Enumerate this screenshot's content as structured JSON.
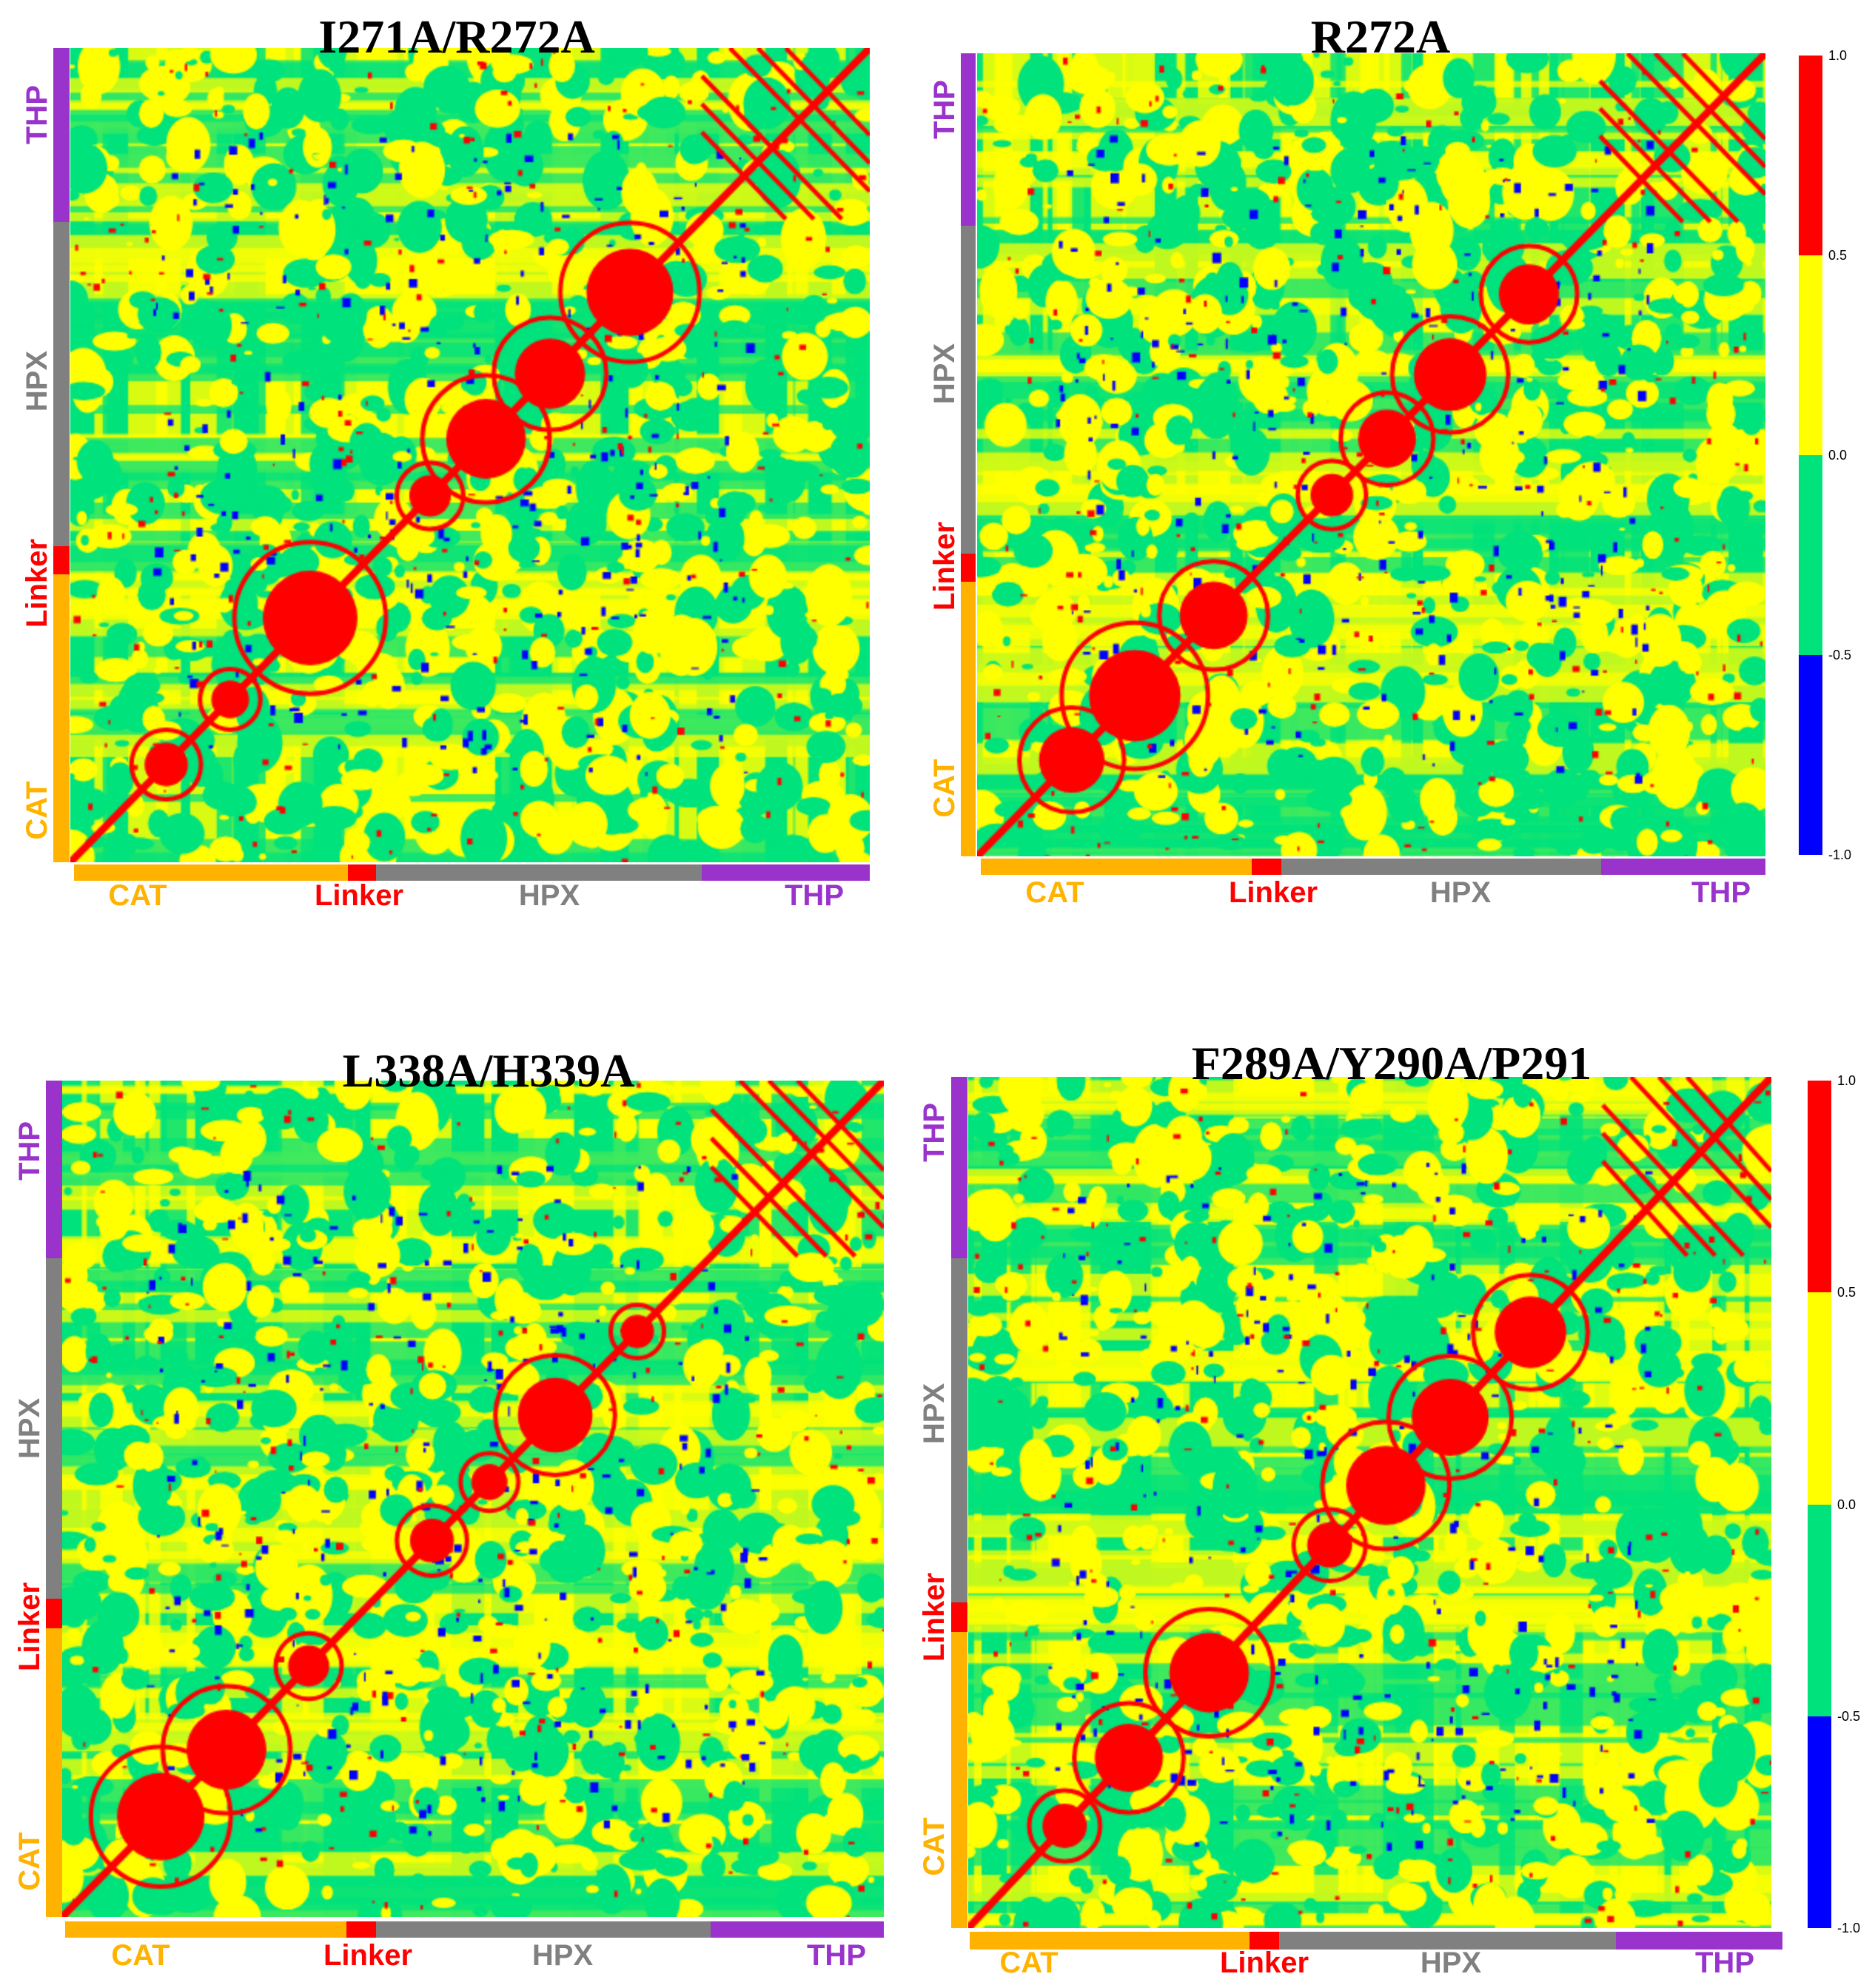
{
  "chart_data": [
    {
      "type": "heatmap",
      "title": "I271A/R272A",
      "domains": [
        {
          "name": "CAT",
          "color": "#ffb300",
          "start": 0,
          "end": 0.351
        },
        {
          "name": "Linker",
          "color": "#ff0000",
          "start": 0.351,
          "end": 0.386
        },
        {
          "name": "HPX",
          "color": "#808080",
          "start": 0.386,
          "end": 0.786
        },
        {
          "name": "THP",
          "color": "#9933cc",
          "start": 0.786,
          "end": 1.0
        }
      ]
    },
    {
      "type": "heatmap",
      "title": "R272A",
      "domains": [
        {
          "name": "CAT",
          "color": "#ffb300",
          "start": 0,
          "end": 0.344
        },
        {
          "name": "Linker",
          "color": "#ff0000",
          "start": 0.344,
          "end": 0.381
        },
        {
          "name": "HPX",
          "color": "#808080",
          "start": 0.381,
          "end": 0.79
        },
        {
          "name": "THP",
          "color": "#9933cc",
          "start": 0.79,
          "end": 1.0
        }
      ],
      "colorbar": {
        "ticks": [
          "1.0",
          "0.5",
          "0.0",
          "-0.5",
          "-1.0"
        ],
        "bins": [
          {
            "from": 0.5,
            "to": 1.0,
            "color": "#ff0000"
          },
          {
            "from": 0.0,
            "to": 0.5,
            "color": "#ffff00"
          },
          {
            "from": -0.5,
            "to": 0.0,
            "color": "#00e27c"
          },
          {
            "from": -1.0,
            "to": -0.5,
            "color": "#0000ff"
          }
        ]
      }
    },
    {
      "type": "heatmap",
      "title": "L338A/H339A",
      "domains": [
        {
          "name": "CAT",
          "color": "#ffb300",
          "start": 0,
          "end": 0.351
        },
        {
          "name": "Linker",
          "color": "#ff0000",
          "start": 0.351,
          "end": 0.386
        },
        {
          "name": "HPX",
          "color": "#808080",
          "start": 0.386,
          "end": 0.786
        },
        {
          "name": "THP",
          "color": "#9933cc",
          "start": 0.786,
          "end": 1.0
        }
      ]
    },
    {
      "type": "heatmap",
      "title": "F289A/Y290A/P291",
      "domains": [
        {
          "name": "CAT",
          "color": "#ffb300",
          "start": 0,
          "end": 0.344
        },
        {
          "name": "Linker",
          "color": "#ff0000",
          "start": 0.344,
          "end": 0.381
        },
        {
          "name": "HPX",
          "color": "#808080",
          "start": 0.381,
          "end": 0.79
        },
        {
          "name": "THP",
          "color": "#9933cc",
          "start": 0.79,
          "end": 1.0
        }
      ],
      "colorbar": {
        "ticks": [
          "1.0",
          "0.5",
          "0.0",
          "-0.5",
          "-1.0"
        ],
        "bins": [
          {
            "from": 0.5,
            "to": 1.0,
            "color": "#ff0000"
          },
          {
            "from": 0.0,
            "to": 0.5,
            "color": "#ffff00"
          },
          {
            "from": -0.5,
            "to": 0.0,
            "color": "#00e27c"
          },
          {
            "from": -1.0,
            "to": -0.5,
            "color": "#0000ff"
          }
        ]
      }
    }
  ]
}
